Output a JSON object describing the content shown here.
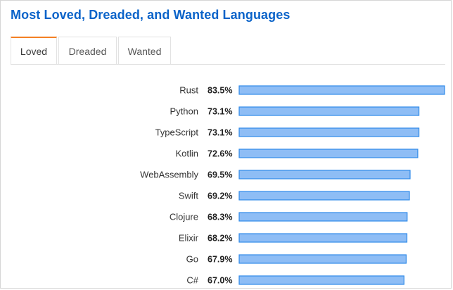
{
  "page_title": "Most Loved, Dreaded, and Wanted Languages",
  "tabs": [
    {
      "label": "Loved",
      "active": true
    },
    {
      "label": "Dreaded",
      "active": false
    },
    {
      "label": "Wanted",
      "active": false
    }
  ],
  "colors": {
    "title": "#0a63c9",
    "active_tab_accent": "#f48024",
    "bar_fill": "#8ebdf5",
    "bar_stroke": "#2f8ae8"
  },
  "chart_data": {
    "type": "bar",
    "orientation": "horizontal",
    "categories": [
      "Rust",
      "Python",
      "TypeScript",
      "Kotlin",
      "WebAssembly",
      "Swift",
      "Clojure",
      "Elixir",
      "Go",
      "C#"
    ],
    "values": [
      83.5,
      73.1,
      73.1,
      72.6,
      69.5,
      69.2,
      68.3,
      68.2,
      67.9,
      67.0
    ],
    "value_labels": [
      "83.5%",
      "73.1%",
      "73.1%",
      "72.6%",
      "69.5%",
      "69.2%",
      "68.3%",
      "68.2%",
      "67.9%",
      "67.0%"
    ],
    "title": "",
    "xlabel": "",
    "ylabel": "",
    "grid": false,
    "legend": "none"
  }
}
